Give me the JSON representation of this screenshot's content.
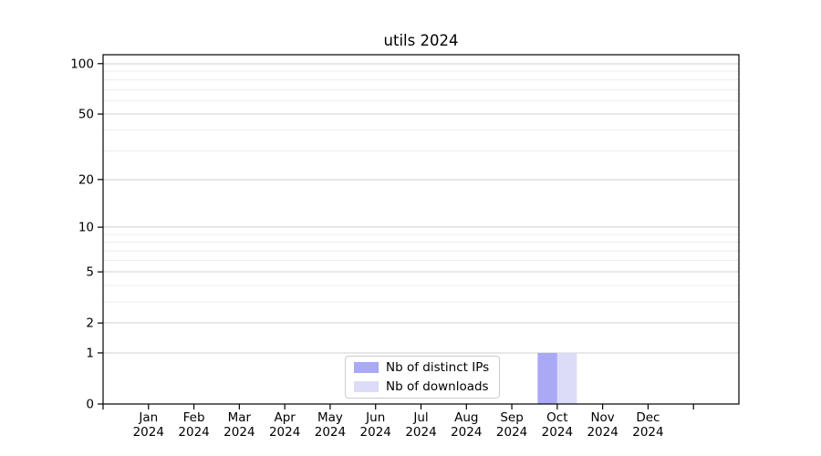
{
  "chart_data": {
    "type": "bar",
    "title": "utils 2024",
    "categories": [
      "Jan",
      "Feb",
      "Mar",
      "Apr",
      "May",
      "Jun",
      "Jul",
      "Aug",
      "Sep",
      "Oct",
      "Nov",
      "Dec"
    ],
    "category_year": "2024",
    "series": [
      {
        "name": "Nb of distinct IPs",
        "color": "#a9a9f5",
        "values": [
          0,
          0,
          0,
          0,
          0,
          0,
          0,
          0,
          0,
          1,
          0,
          0
        ]
      },
      {
        "name": "Nb of downloads",
        "color": "#dcdcf8",
        "values": [
          0,
          0,
          0,
          0,
          0,
          0,
          0,
          0,
          0,
          1,
          0,
          0
        ]
      }
    ],
    "yscale": "log1p",
    "ylim": [
      0,
      113
    ],
    "y_major_ticks": [
      0,
      1,
      2,
      5,
      10,
      20,
      50,
      100
    ],
    "y_minor_gridlines": [
      3,
      4,
      6,
      7,
      8,
      9,
      30,
      40,
      60,
      70,
      80,
      90
    ],
    "grid": "horizontal",
    "legend_position": "lower center",
    "colors": {
      "major_grid": "#d2d2d2",
      "minor_grid": "#ededed",
      "axis": "#000000",
      "text": "#000000",
      "background": "#ffffff"
    }
  }
}
